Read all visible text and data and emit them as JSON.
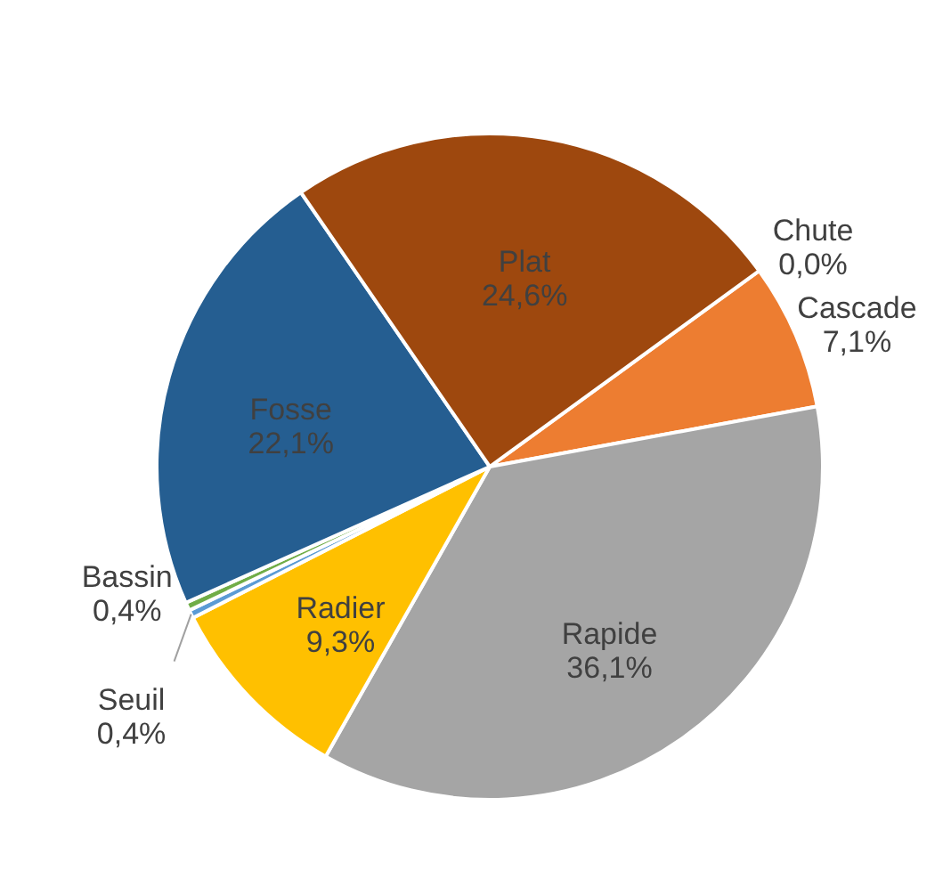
{
  "chart_data": {
    "type": "pie",
    "categories": [
      "Chute",
      "Cascade",
      "Rapide",
      "Radier",
      "Seuil",
      "Bassin",
      "Fosse",
      "Plat"
    ],
    "values": [
      0.0,
      7.1,
      36.1,
      9.3,
      0.4,
      0.4,
      22.1,
      24.6
    ],
    "value_labels": [
      "0,0%",
      "7,1%",
      "36,1%",
      "9,3%",
      "0,4%",
      "0,4%",
      "22,1%",
      "24,6%"
    ],
    "colors": [
      "#264478",
      "#ed7d31",
      "#a5a5a5",
      "#ffc000",
      "#5b9bd5",
      "#70ad47",
      "#255e91",
      "#9e480e"
    ]
  }
}
